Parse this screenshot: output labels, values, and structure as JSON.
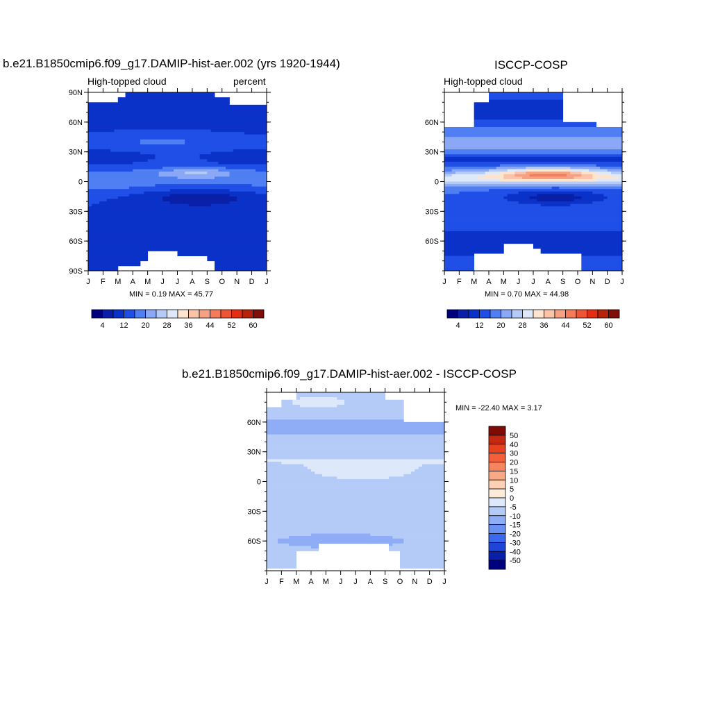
{
  "colors": {
    "abs_palette": [
      "#00007f",
      "#0a1fa8",
      "#0b32c8",
      "#1f4fe6",
      "#4f7ff2",
      "#8aa8f5",
      "#b5cbf7",
      "#dde9fb",
      "#fde4cf",
      "#fbc3a8",
      "#f7a183",
      "#f47c5c",
      "#ee5537",
      "#e32e14",
      "#b6210c",
      "#7f0f08"
    ],
    "diff_palette": [
      "#00007f",
      "#0a1fa8",
      "#1f45d8",
      "#3a68ee",
      "#6a90f3",
      "#8fadf6",
      "#b5cbf7",
      "#dde9fb",
      "#fdebd9",
      "#fcd0b4",
      "#f9a985",
      "#f6855f",
      "#f25f39",
      "#e8411f",
      "#c32812",
      "#800a05"
    ]
  },
  "panels": [
    {
      "id": "model",
      "title": "b.e21.B1850cmip6.f09_g17.DAMIP-hist-aer.002 (yrs 1920-1944)",
      "left_string": "High-topped cloud",
      "right_string": "percent",
      "minmax": "MIN =   0.19 MAX =  45.77"
    },
    {
      "id": "obs",
      "title": "ISCCP-COSP",
      "left_string": "High-topped cloud",
      "right_string": "",
      "minmax": "MIN =   0.70 MAX =  44.98"
    },
    {
      "id": "diff",
      "title": "b.e21.B1850cmip6.f09_g17.DAMIP-hist-aer.002 - ISCCP-COSP",
      "left_string": "",
      "right_string": "",
      "minmax": "MIN = -22.40 MAX =   3.17"
    }
  ],
  "chart_data": [
    {
      "type": "heatmap",
      "title": "b.e21.B1850cmip6.f09_g17.DAMIP-hist-aer.002 (yrs 1920-1944)",
      "x_tick_labels": [
        "J",
        "F",
        "M",
        "A",
        "M",
        "J",
        "J",
        "A",
        "S",
        "O",
        "N",
        "D",
        "J"
      ],
      "y_tick_labels": [
        "90N",
        "60N",
        "30N",
        "0",
        "30S",
        "60S",
        "90S"
      ],
      "y_tick_values": [
        90,
        60,
        30,
        0,
        -30,
        -60,
        -90
      ],
      "ylim": [
        -90,
        90
      ],
      "units": "percent",
      "colorbar_labels": [
        "4",
        "12",
        "20",
        "28",
        "36",
        "44",
        "52",
        "60"
      ],
      "min": 0.19,
      "max": 45.77
    },
    {
      "type": "heatmap",
      "title": "ISCCP-COSP",
      "x_tick_labels": [
        "J",
        "F",
        "M",
        "A",
        "M",
        "J",
        "J",
        "A",
        "S",
        "O",
        "N",
        "D",
        "J"
      ],
      "y_tick_labels": [
        "60N",
        "30N",
        "0",
        "30S",
        "60S"
      ],
      "y_tick_values": [
        60,
        30,
        0,
        -30,
        -60
      ],
      "ylim": [
        -90,
        90
      ],
      "colorbar_labels": [
        "4",
        "12",
        "20",
        "28",
        "36",
        "44",
        "52",
        "60"
      ],
      "min": 0.7,
      "max": 44.98
    },
    {
      "type": "heatmap",
      "title": "b.e21.B1850cmip6.f09_g17.DAMIP-hist-aer.002 - ISCCP-COSP",
      "x_tick_labels": [
        "J",
        "F",
        "M",
        "A",
        "M",
        "J",
        "J",
        "A",
        "S",
        "O",
        "N",
        "D",
        "J"
      ],
      "y_tick_labels": [
        "60N",
        "30N",
        "0",
        "30S",
        "60S"
      ],
      "y_tick_values": [
        60,
        30,
        0,
        -30,
        -60
      ],
      "ylim": [
        -90,
        90
      ],
      "colorbar_labels": [
        "50",
        "40",
        "30",
        "20",
        "15",
        "10",
        "5",
        "0",
        "-5",
        "-10",
        "-15",
        "-20",
        "-30",
        "-40",
        "-50"
      ],
      "min": -22.4,
      "max": 3.17
    }
  ]
}
